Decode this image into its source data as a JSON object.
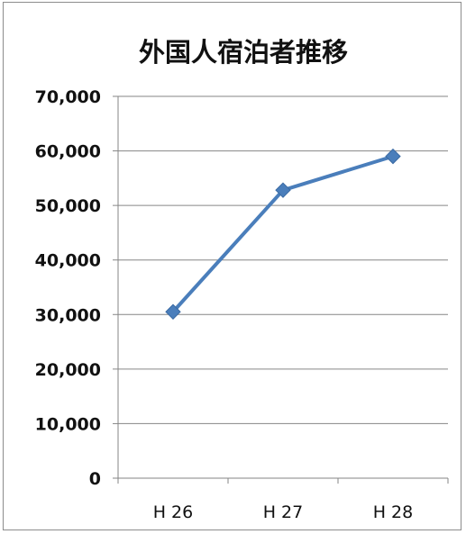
{
  "chart_data": {
    "type": "line",
    "title": "外国人宿泊者推移",
    "categories": [
      "H 26",
      "H 27",
      "H 28"
    ],
    "series": [
      {
        "values": [
          30500,
          52800,
          59000
        ]
      }
    ],
    "ylim": [
      0,
      70000
    ],
    "yticks": [
      0,
      10000,
      20000,
      30000,
      40000,
      50000,
      60000,
      70000
    ],
    "ytick_labels": [
      "0",
      "10,000",
      "20,000",
      "30,000",
      "40,000",
      "50,000",
      "60,000",
      "70,000"
    ],
    "grid": true,
    "legend": "none",
    "colors": {
      "line": "#4a7ebb",
      "marker": "#4a7ebb",
      "grid": "#868686",
      "axis": "#868686"
    }
  }
}
